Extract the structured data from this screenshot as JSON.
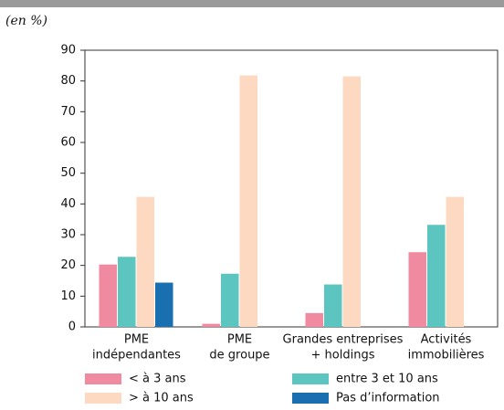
{
  "chart_data": {
    "type": "bar",
    "subtitle": "(en %)",
    "categories": [
      [
        "PME",
        "indépendantes"
      ],
      [
        "PME",
        "de groupe"
      ],
      [
        "Grandes entreprises",
        "+ holdings"
      ],
      [
        "Activités",
        "immobilières"
      ]
    ],
    "series": [
      {
        "name": "< à 3 ans",
        "color": "#f08aa0",
        "values": [
          20.3,
          1,
          4.5,
          24.3
        ]
      },
      {
        "name": "entre 3 et 10 ans",
        "color": "#5cc5c0",
        "values": [
          22.8,
          17.3,
          13.8,
          33.2
        ]
      },
      {
        "name": "> à 10 ans",
        "color": "#fcd9c0",
        "values": [
          42.3,
          81.8,
          81.5,
          42.3
        ]
      },
      {
        "name": "Pas d’information",
        "color": "#1a6fb0",
        "values": [
          14.4,
          0,
          0,
          0
        ]
      }
    ],
    "ylim": [
      0,
      90
    ],
    "yticks": [
      0,
      10,
      20,
      30,
      40,
      50,
      60,
      70,
      80,
      90
    ],
    "grid": false
  }
}
